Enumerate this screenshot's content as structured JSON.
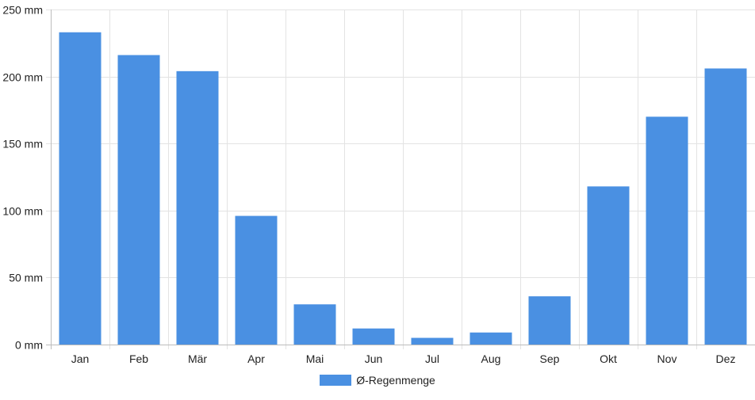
{
  "chart_data": {
    "type": "bar",
    "categories": [
      "Jan",
      "Feb",
      "Mär",
      "Apr",
      "Mai",
      "Jun",
      "Jul",
      "Aug",
      "Sep",
      "Okt",
      "Nov",
      "Dez"
    ],
    "series": [
      {
        "name": "Ø-Regenmenge",
        "values": [
          233,
          216,
          204,
          96,
          30,
          12,
          5,
          9,
          36,
          118,
          170,
          206
        ]
      }
    ],
    "ylim": [
      0,
      250
    ],
    "yticks": [
      0,
      50,
      100,
      150,
      200,
      250
    ],
    "y_unit": "mm",
    "grid": true,
    "legend_position": "bottom",
    "colors": {
      "bar": "#4a90e2",
      "grid": "#e3e3e3",
      "axis": "#bdbdbd"
    }
  }
}
